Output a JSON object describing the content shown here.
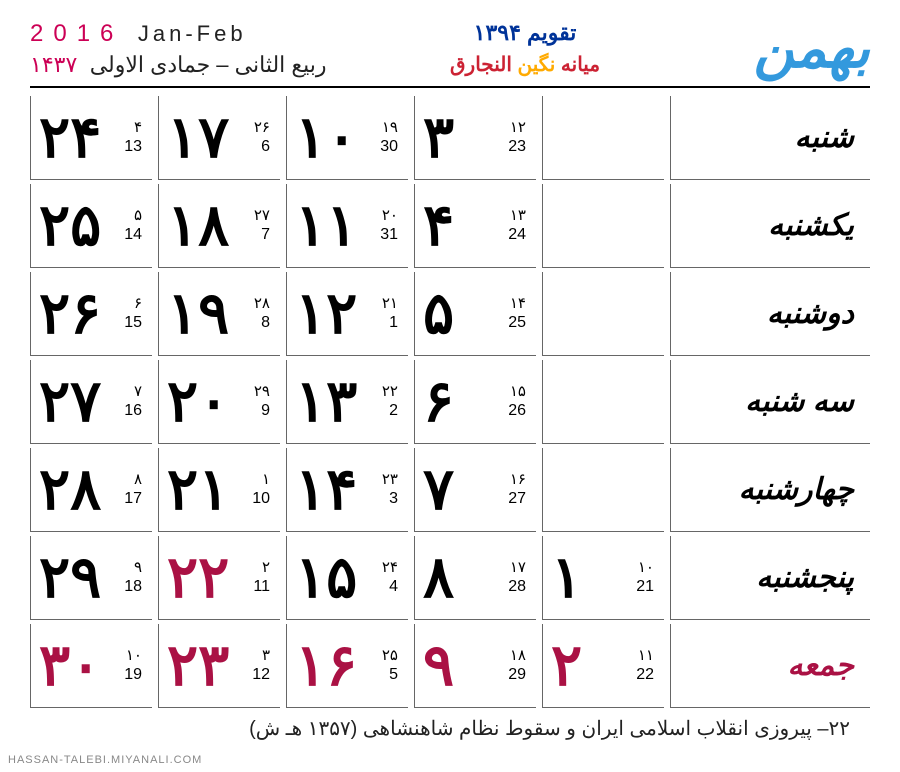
{
  "header": {
    "month_name": "بهمن",
    "title": "تقویم ۱۳۹۴",
    "subtitle_p1": "النجارق",
    "subtitle_p2": "نگین",
    "subtitle_p3": "میانه",
    "greg_year": "2016",
    "greg_months": "Jan-Feb",
    "hijri_year": "۱۴۳۷",
    "hijri_months": "ربیع الثانی – جمادی الاولی"
  },
  "day_labels": [
    "شنبه",
    "یکشنبه",
    "دوشنبه",
    "سه شنبه",
    "چهارشنبه",
    "پنجشنبه",
    "جمعه"
  ],
  "holiday_row_index": 6,
  "weeks": [
    [
      {
        "p": "۳",
        "h": "۱۲",
        "g": "23",
        "holiday": false
      },
      {
        "p": "۴",
        "h": "۱۳",
        "g": "24",
        "holiday": false
      },
      {
        "p": "۵",
        "h": "۱۴",
        "g": "25",
        "holiday": false
      },
      {
        "p": "۶",
        "h": "۱۵",
        "g": "26",
        "holiday": false
      },
      {
        "p": "۷",
        "h": "۱۶",
        "g": "27",
        "holiday": false
      },
      {
        "p": "۸",
        "h": "۱۷",
        "g": "28",
        "holiday": false
      },
      {
        "p": "۹",
        "h": "۱۸",
        "g": "29",
        "holiday": true
      }
    ],
    [
      {
        "p": "۱۰",
        "h": "۱۹",
        "g": "30",
        "holiday": false
      },
      {
        "p": "۱۱",
        "h": "۲۰",
        "g": "31",
        "holiday": false
      },
      {
        "p": "۱۲",
        "h": "۲۱",
        "g": "1",
        "holiday": false
      },
      {
        "p": "۱۳",
        "h": "۲۲",
        "g": "2",
        "holiday": false
      },
      {
        "p": "۱۴",
        "h": "۲۳",
        "g": "3",
        "holiday": false
      },
      {
        "p": "۱۵",
        "h": "۲۴",
        "g": "4",
        "holiday": false
      },
      {
        "p": "۱۶",
        "h": "۲۵",
        "g": "5",
        "holiday": true
      }
    ],
    [
      {
        "p": "۱۷",
        "h": "۲۶",
        "g": "6",
        "holiday": false
      },
      {
        "p": "۱۸",
        "h": "۲۷",
        "g": "7",
        "holiday": false
      },
      {
        "p": "۱۹",
        "h": "۲۸",
        "g": "8",
        "holiday": false
      },
      {
        "p": "۲۰",
        "h": "۲۹",
        "g": "9",
        "holiday": false
      },
      {
        "p": "۲۱",
        "h": "۱",
        "g": "10",
        "holiday": false
      },
      {
        "p": "۲۲",
        "h": "۲",
        "g": "11",
        "holiday": true
      },
      {
        "p": "۲۳",
        "h": "۳",
        "g": "12",
        "holiday": true
      }
    ],
    [
      {
        "p": "۲۴",
        "h": "۴",
        "g": "13",
        "holiday": false
      },
      {
        "p": "۲۵",
        "h": "۵",
        "g": "14",
        "holiday": false
      },
      {
        "p": "۲۶",
        "h": "۶",
        "g": "15",
        "holiday": false
      },
      {
        "p": "۲۷",
        "h": "۷",
        "g": "16",
        "holiday": false
      },
      {
        "p": "۲۸",
        "h": "۸",
        "g": "17",
        "holiday": false
      },
      {
        "p": "۲۹",
        "h": "۹",
        "g": "18",
        "holiday": false
      },
      {
        "p": "۳۰",
        "h": "۱۰",
        "g": "19",
        "holiday": true
      }
    ],
    [
      null,
      null,
      null,
      null,
      null,
      {
        "p": "۱",
        "h": "۱۰",
        "g": "21",
        "holiday": false
      },
      {
        "p": "۲",
        "h": "۱۱",
        "g": "22",
        "holiday": true
      }
    ]
  ],
  "footer_note": "۲۲– پیروزی انقلاب اسلامی ایران و سقوط نظام شاهنشاهی (۱۳۵۷ هـ ش)",
  "watermark": "HASSAN-TALEBI.MIYANALI.COM",
  "colors": {
    "accent_blue": "#3399dd",
    "title_blue": "#003399",
    "holiday": "#aa1144",
    "magenta": "#cc0055",
    "orange": "#ffaa00"
  }
}
